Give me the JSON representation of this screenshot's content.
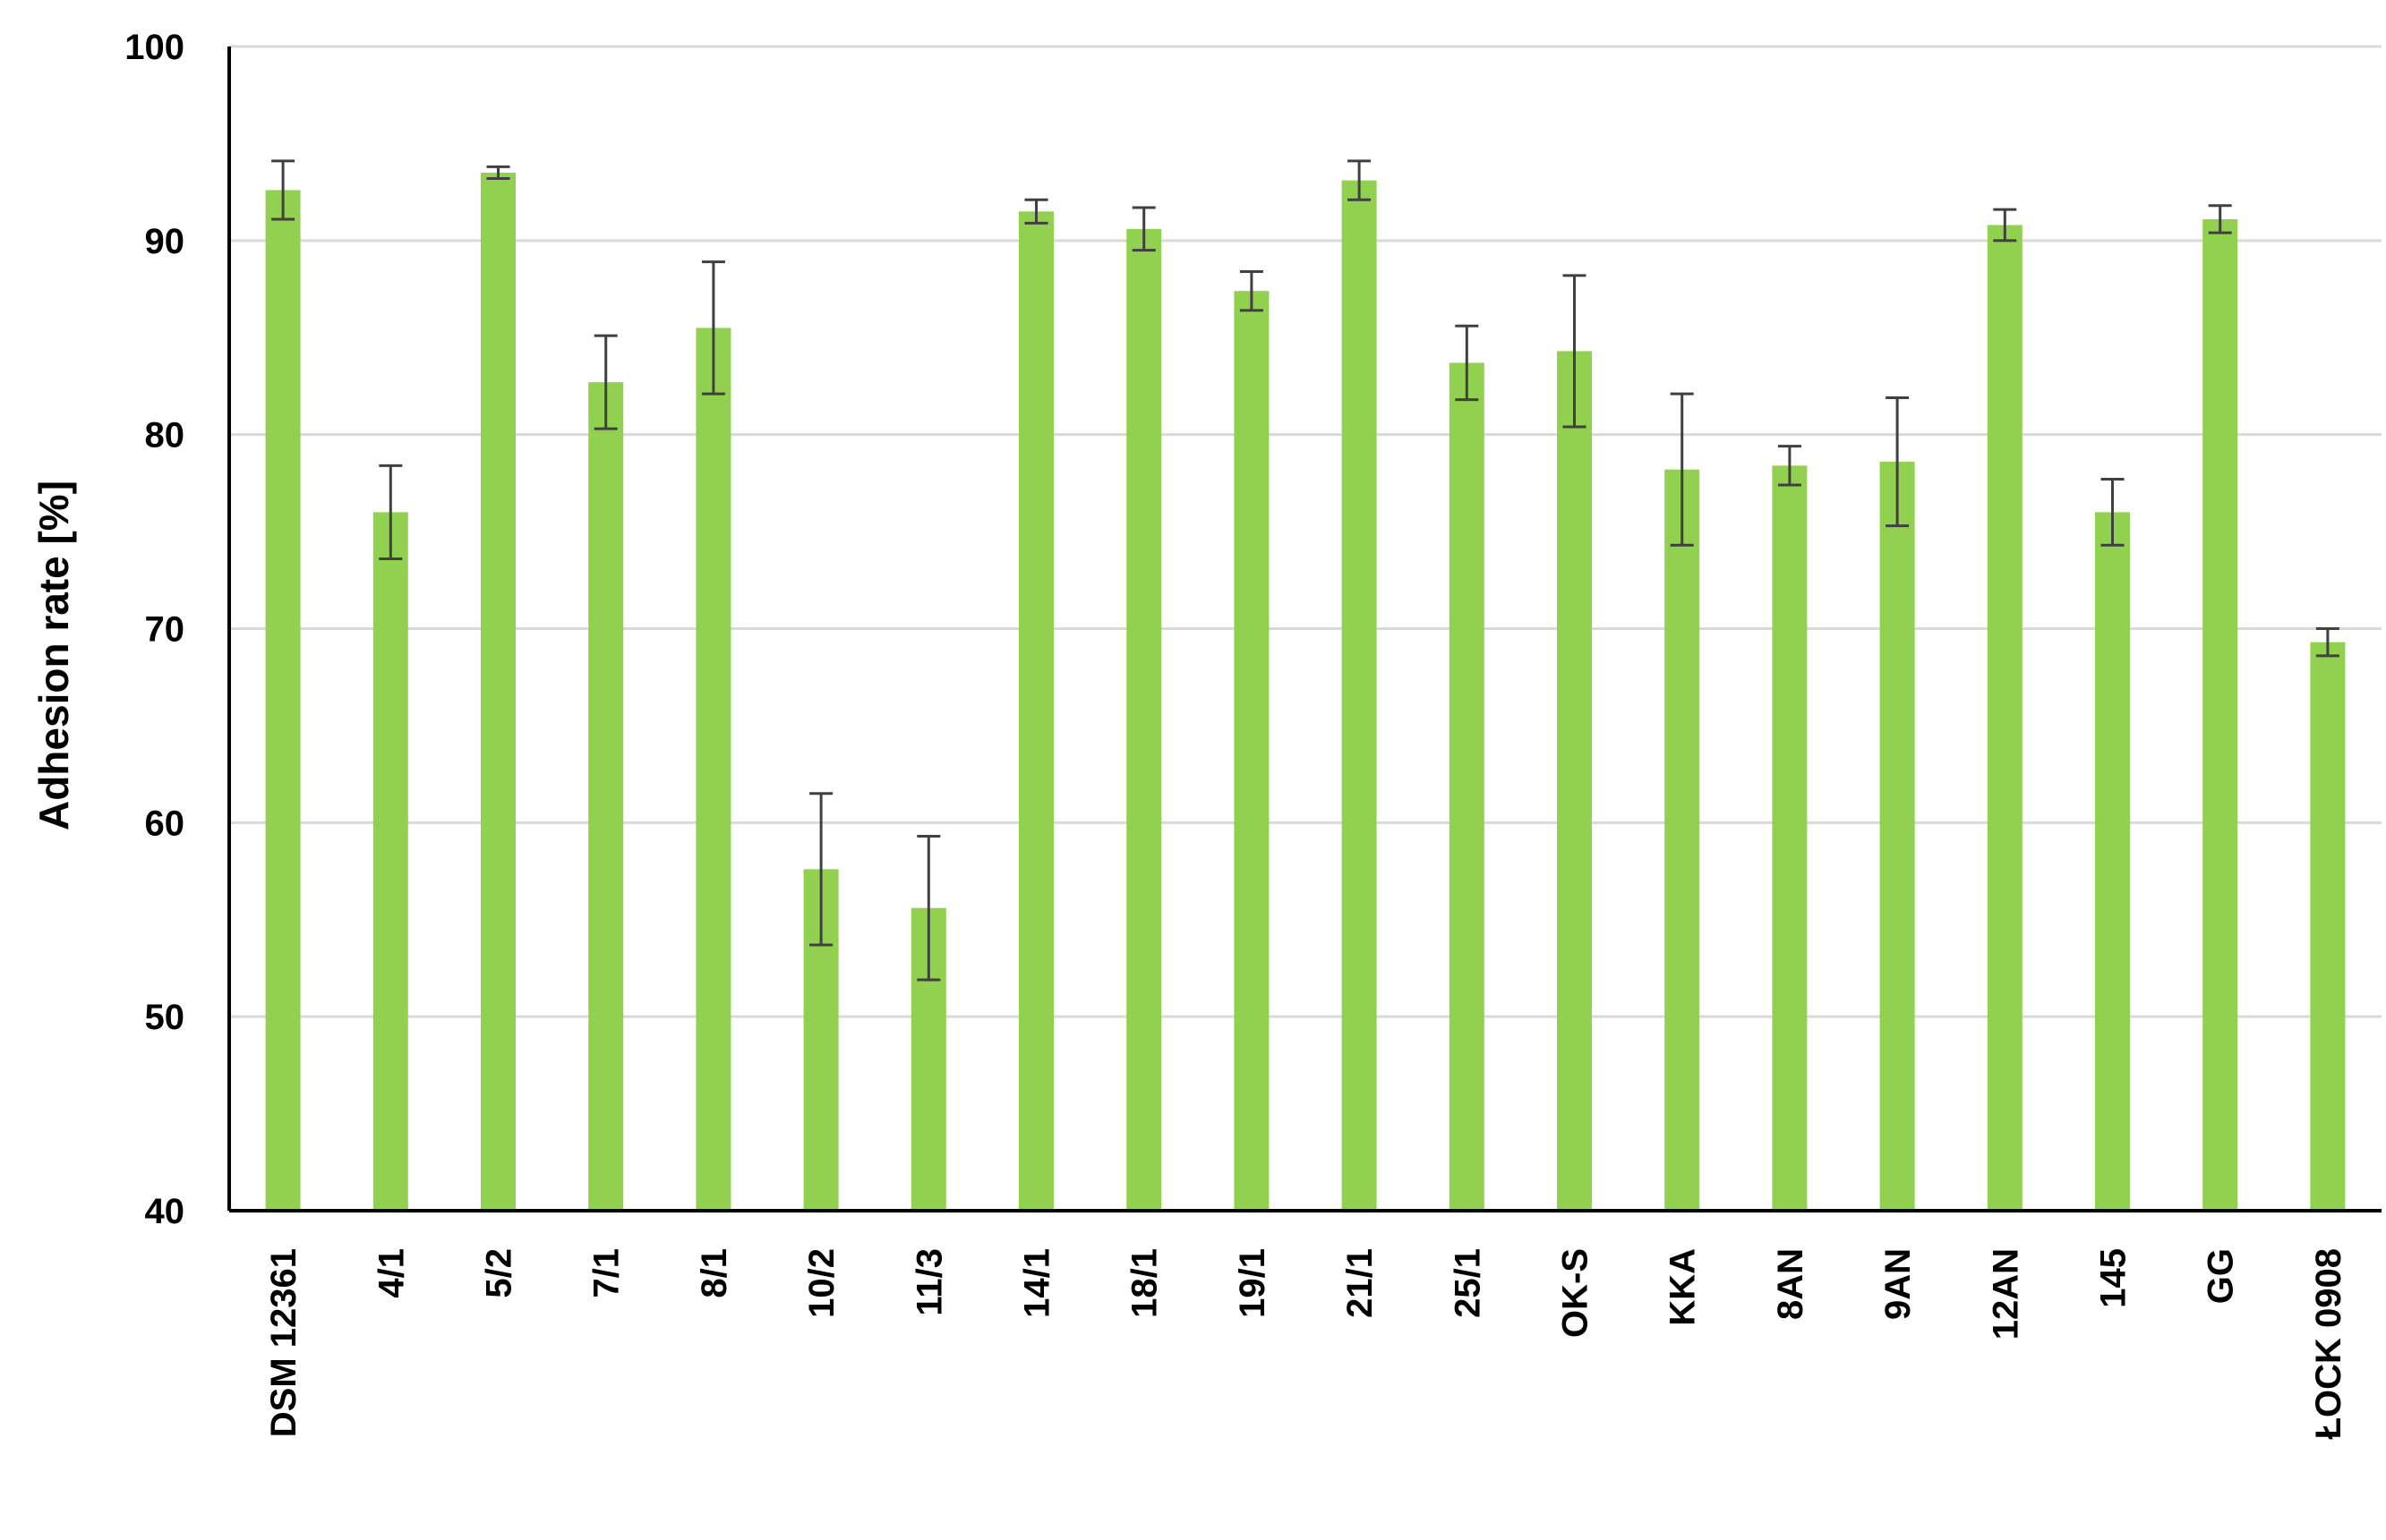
{
  "chart_data": {
    "type": "bar",
    "title": "",
    "xlabel": "",
    "ylabel": "Adhesion rate [%]",
    "ylim": [
      40,
      100
    ],
    "yticks": [
      40,
      50,
      60,
      70,
      80,
      90,
      100
    ],
    "grid": true,
    "legend": "none",
    "categories": [
      "DSM 12361",
      "4/1",
      "5/2",
      "7/1",
      "8/1",
      "10/2",
      "11/3",
      "14/1",
      "18/1",
      "19/1",
      "21/1",
      "25/1",
      "OK-S",
      "KKA",
      "8AN",
      "9AN",
      "12AN",
      "145",
      "GG",
      "ŁOCK 0908"
    ],
    "series": [
      {
        "values": [
          92.6,
          76.0,
          93.5,
          82.7,
          85.5,
          57.6,
          55.6,
          91.5,
          90.6,
          87.4,
          93.1,
          83.7,
          84.3,
          78.2,
          78.4,
          78.6,
          90.8,
          76.0,
          91.1,
          69.3
        ],
        "errors": [
          1.5,
          2.4,
          0.3,
          2.4,
          3.4,
          3.9,
          3.7,
          0.6,
          1.1,
          1.0,
          1.0,
          1.9,
          3.9,
          3.9,
          1.0,
          3.3,
          0.8,
          1.7,
          0.7,
          0.7
        ]
      }
    ],
    "colors": {
      "bar": "#92D050",
      "error_bar": "#404040",
      "gridline": "#D9D9D9",
      "axis": "#000000"
    }
  }
}
